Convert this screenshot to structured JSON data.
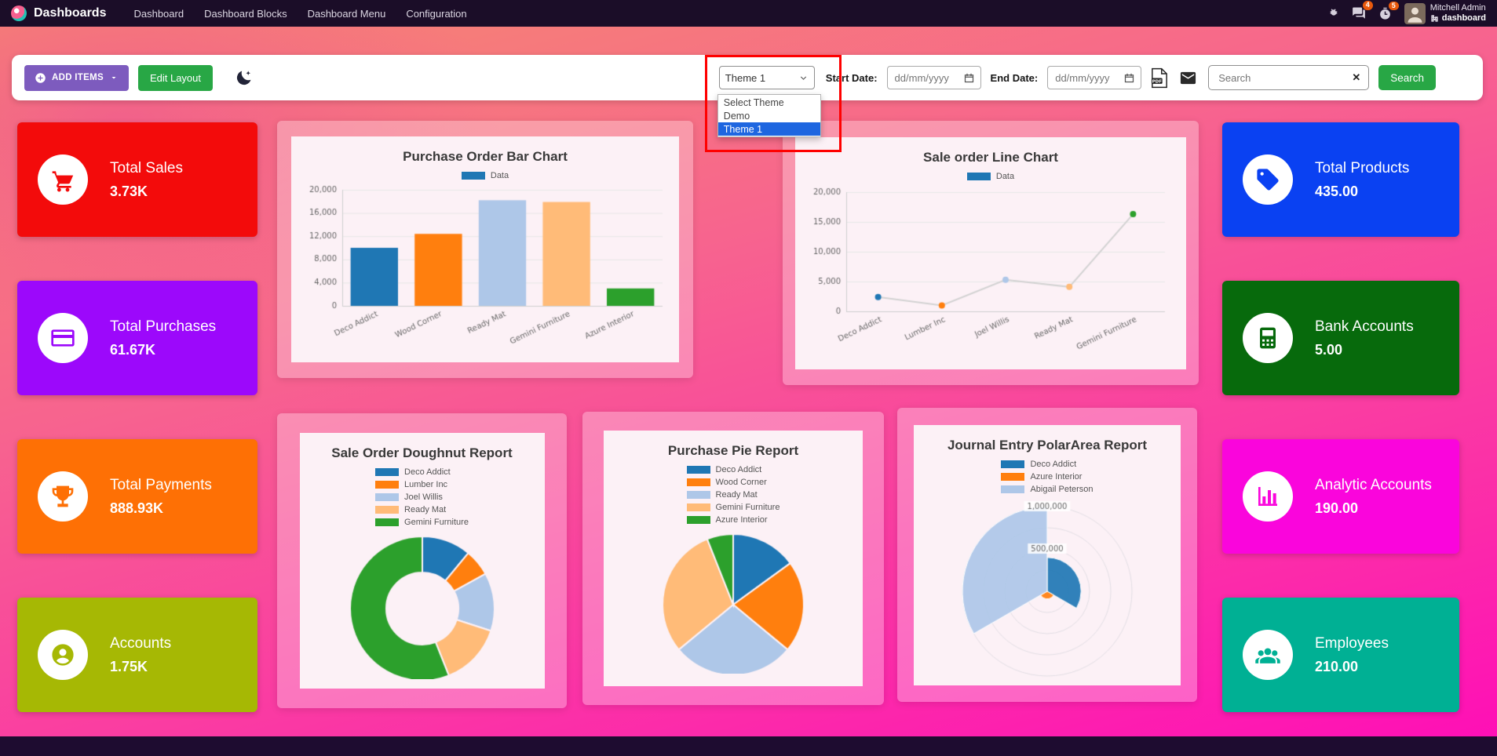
{
  "navbar": {
    "app_title": "Dashboards",
    "menu_items": [
      "Dashboard",
      "Dashboard Blocks",
      "Dashboard Menu",
      "Configuration"
    ],
    "messages_badge": "4",
    "activities_badge": "5",
    "user_name": "Mitchell Admin",
    "company_name": "dashboard"
  },
  "toolbar": {
    "add_items_label": "ADD ITEMS",
    "edit_layout_label": "Edit Layout",
    "theme_select": {
      "value": "Theme 1",
      "options": [
        "Select Theme",
        "Demo",
        "Theme 1"
      ],
      "selected": "Theme 1"
    },
    "start_date_label": "Start Date:",
    "end_date_label": "End Date:",
    "date_placeholder": "dd/mm/yyyy",
    "search_placeholder": "Search",
    "search_button_label": "Search",
    "clear_icon": "✕"
  },
  "kpis_left": [
    {
      "title": "Total Sales",
      "value": "3.73K",
      "color": "#f30b0b",
      "icon": "cart-icon"
    },
    {
      "title": "Total Purchases",
      "value": "61.67K",
      "color": "#9c08fb",
      "icon": "credit-card-icon"
    },
    {
      "title": "Total Payments",
      "value": "888.93K",
      "color": "#fe7005",
      "icon": "trophy-icon"
    },
    {
      "title": "Accounts",
      "value": "1.75K",
      "color": "#a6b804",
      "icon": "person-icon"
    }
  ],
  "kpis_right": [
    {
      "title": "Total Products",
      "value": "435.00",
      "color": "#0a41f2",
      "icon": "tag-icon"
    },
    {
      "title": "Bank Accounts",
      "value": "5.00",
      "color": "#076a0c",
      "icon": "calculator-icon"
    },
    {
      "title": "Analytic Accounts",
      "value": "190.00",
      "color": "#fa05dc",
      "icon": "bar-chart-icon"
    },
    {
      "title": "Employees",
      "value": "210.00",
      "color": "#00b094",
      "icon": "users-icon"
    }
  ],
  "chart_data": [
    {
      "type": "bar",
      "canvas": "cv-bar",
      "title": "Purchase Order Bar Chart",
      "legend": [
        {
          "label": "Data",
          "color": "#1f77b4"
        }
      ],
      "categories": [
        "Deco Addict",
        "Wood Corner",
        "Ready Mat",
        "Gemini Furniture",
        "Azure Interior"
      ],
      "values": [
        10000,
        12400,
        18200,
        17900,
        3000
      ],
      "colors": [
        "#1f77b4",
        "#ff7f0e",
        "#aec7e8",
        "#ffbb78",
        "#2ca02c"
      ],
      "xlabel": "",
      "ylabel": "",
      "ylim": [
        0,
        20000
      ],
      "yticks": [
        0,
        4000,
        8000,
        12000,
        16000,
        20000
      ],
      "grid": true,
      "legend_position": "top"
    },
    {
      "type": "line",
      "canvas": "cv-line",
      "title": "Sale order Line Chart",
      "legend": [
        {
          "label": "Data",
          "color": "#1f77b4"
        }
      ],
      "categories": [
        "Deco Addict",
        "Lumber Inc",
        "Joel Willis",
        "Ready Mat",
        "Gemini Furniture"
      ],
      "values": [
        2400,
        1000,
        5300,
        4100,
        16300
      ],
      "line_color": "#d2d2d2",
      "point_colors": [
        "#1f77b4",
        "#ff7f0e",
        "#aec7e8",
        "#ffbb78",
        "#2ca02c"
      ],
      "xlabel": "",
      "ylabel": "",
      "ylim": [
        0,
        20000
      ],
      "yticks": [
        0,
        5000,
        10000,
        15000,
        20000
      ],
      "grid": true,
      "legend_position": "top"
    },
    {
      "type": "doughnut",
      "canvas": "cv-doughnut",
      "title": "Sale Order Doughnut Report",
      "labels": [
        "Deco Addict",
        "Lumber Inc",
        "Joel Willis",
        "Ready Mat",
        "Gemini Furniture"
      ],
      "values": [
        11,
        6,
        13,
        14,
        56
      ],
      "colors": [
        "#1f77b4",
        "#ff7f0e",
        "#aec7e8",
        "#ffbb78",
        "#2ca02c"
      ],
      "legend_position": "top"
    },
    {
      "type": "pie",
      "canvas": "cv-pie",
      "title": "Purchase Pie Report",
      "labels": [
        "Deco Addict",
        "Wood Corner",
        "Ready Mat",
        "Gemini Furniture",
        "Azure Interior"
      ],
      "values": [
        15,
        21,
        28,
        30,
        6
      ],
      "colors": [
        "#1f77b4",
        "#ff7f0e",
        "#aec7e8",
        "#ffbb78",
        "#2ca02c"
      ],
      "legend_position": "top"
    },
    {
      "type": "polarArea",
      "canvas": "cv-polar",
      "title": "Journal Entry PolarArea Report",
      "labels": [
        "Deco Addict",
        "Azure Interior",
        "Abigail Peterson"
      ],
      "values": [
        400000,
        90000,
        1000000
      ],
      "colors": [
        "#1f77b4",
        "#ff7f0e",
        "#aec7e8"
      ],
      "rmax": 1000000,
      "rticks": [
        {
          "value": 500000,
          "label": "500,000"
        },
        {
          "value": 1000000,
          "label": "1,000,000"
        }
      ],
      "legend_position": "top"
    }
  ],
  "colors": {
    "annotation_box": "#ff0000",
    "dropdown_highlight": "#1e66e0",
    "navbar_bg": "#1b0d28",
    "accent_purple": "#7d5bbe",
    "accent_green": "#28a745",
    "palette": [
      "#1f77b4",
      "#ff7f0e",
      "#aec7e8",
      "#ffbb78",
      "#2ca02c"
    ]
  }
}
